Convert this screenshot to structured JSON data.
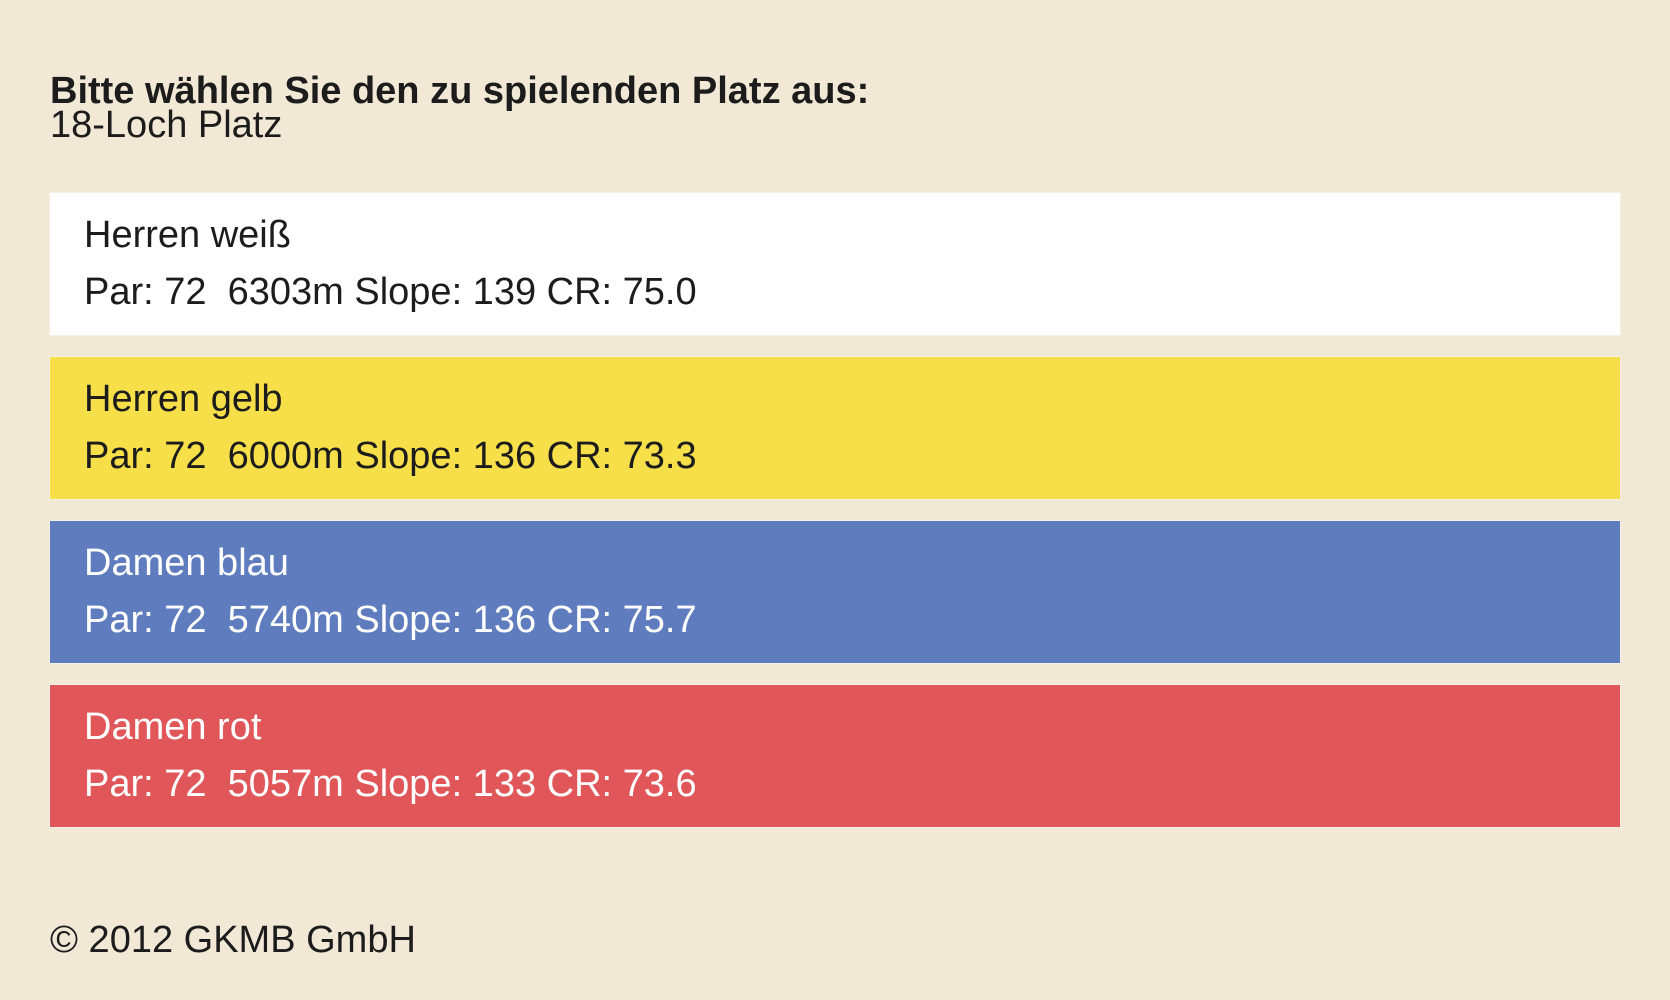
{
  "page": {
    "heading": "Bitte wählen Sie den zu spielenden Platz aus:",
    "course_name": "18-Loch Platz"
  },
  "tees": [
    {
      "name": "Herren weiß",
      "stats": "Par: 72  6303m Slope: 139 CR: 75.0",
      "background": "#ffffff",
      "text_color": "#1c1c1c"
    },
    {
      "name": "Herren gelb",
      "stats": "Par: 72  6000m Slope: 136 CR: 73.3",
      "background": "#f6df48",
      "text_color": "#1c1c1c"
    },
    {
      "name": "Damen blau",
      "stats": "Par: 72  5740m Slope: 136 CR: 75.7",
      "background": "#5e7cbe",
      "text_color": "#ffffff"
    },
    {
      "name": "Damen rot",
      "stats": "Par: 72  5057m Slope: 133 CR: 73.6",
      "background": "#e05659",
      "text_color": "#ffffff"
    }
  ],
  "footer": {
    "copyright": "© 2012 GKMB GmbH"
  },
  "colors": {
    "page_background": "#f2e8d6"
  }
}
